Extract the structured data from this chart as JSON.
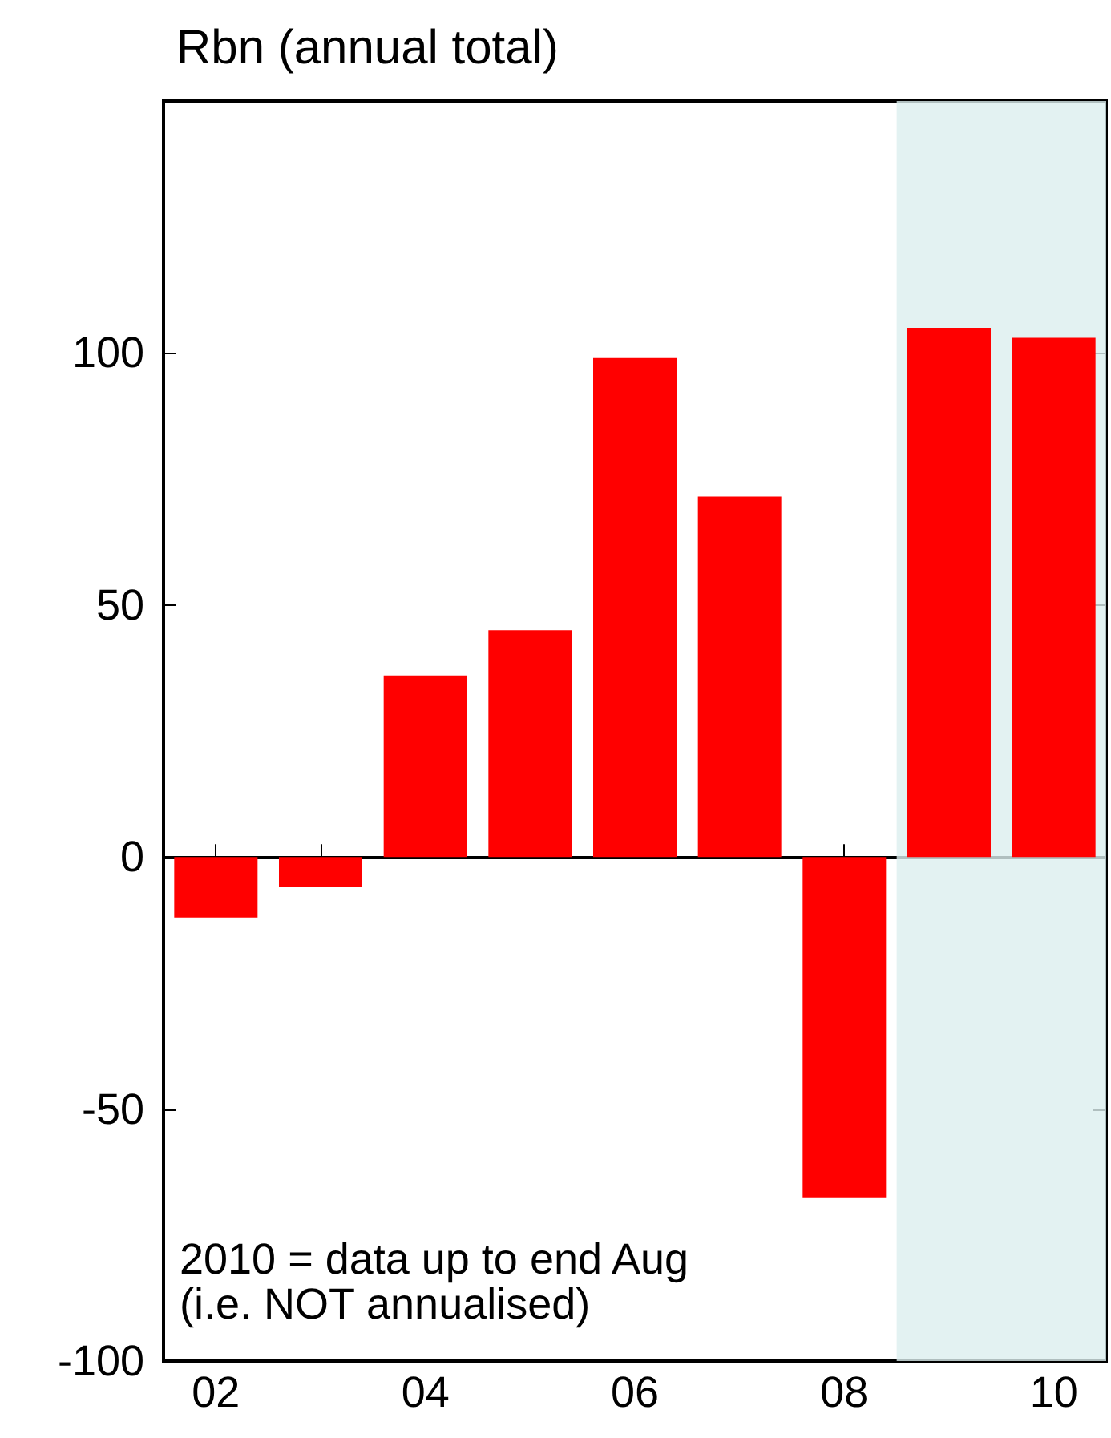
{
  "chart_data": {
    "type": "bar",
    "title": "Rbn (annual total)",
    "x": [
      2002,
      2003,
      2004,
      2005,
      2006,
      2007,
      2008,
      2009,
      2010
    ],
    "values": [
      -12,
      -6,
      36,
      45,
      99,
      71.5,
      -67.5,
      105,
      103
    ],
    "color": "#ff0000",
    "xlim": [
      2001.5,
      2010.5
    ],
    "xticks": [
      {
        "value": 2002,
        "label": "02"
      },
      {
        "value": 2003,
        "label": null
      },
      {
        "value": 2004,
        "label": "04"
      },
      {
        "value": 2005,
        "label": null
      },
      {
        "value": 2006,
        "label": "06"
      },
      {
        "value": 2007,
        "label": null
      },
      {
        "value": 2008,
        "label": "08"
      },
      {
        "value": 2009,
        "label": null
      },
      {
        "value": 2010,
        "label": "10"
      }
    ],
    "ylim": [
      -100,
      150
    ],
    "yticks": [
      -100,
      -50,
      0,
      50,
      100
    ],
    "bands": [
      {
        "axis": "x",
        "from": 2008.5,
        "to": 2010.5,
        "color": "#dcefef"
      }
    ],
    "annotations": [
      "2010 = data up to end Aug",
      "(i.e. NOT annualised)"
    ]
  }
}
